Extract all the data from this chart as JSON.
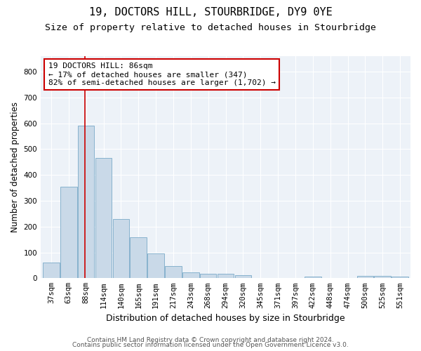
{
  "title1": "19, DOCTORS HILL, STOURBRIDGE, DY9 0YE",
  "title2": "Size of property relative to detached houses in Stourbridge",
  "xlabel": "Distribution of detached houses by size in Stourbridge",
  "ylabel": "Number of detached properties",
  "categories": [
    "37sqm",
    "63sqm",
    "88sqm",
    "114sqm",
    "140sqm",
    "165sqm",
    "191sqm",
    "217sqm",
    "243sqm",
    "268sqm",
    "294sqm",
    "320sqm",
    "345sqm",
    "371sqm",
    "397sqm",
    "422sqm",
    "448sqm",
    "474sqm",
    "500sqm",
    "525sqm",
    "551sqm"
  ],
  "values": [
    60,
    355,
    590,
    465,
    228,
    158,
    95,
    48,
    22,
    18,
    18,
    12,
    0,
    0,
    0,
    5,
    0,
    0,
    8,
    8,
    7
  ],
  "bar_color": "#c9d9e8",
  "bar_edge_color": "#7aaac8",
  "annotation_text": "19 DOCTORS HILL: 86sqm\n← 17% of detached houses are smaller (347)\n82% of semi-detached houses are larger (1,702) →",
  "annotation_box_color": "#ffffff",
  "annotation_box_edge": "#cc0000",
  "vline_color": "#cc0000",
  "ylim": [
    0,
    860
  ],
  "yticks": [
    0,
    100,
    200,
    300,
    400,
    500,
    600,
    700,
    800
  ],
  "background_color": "#edf2f8",
  "footer1": "Contains HM Land Registry data © Crown copyright and database right 2024.",
  "footer2": "Contains public sector information licensed under the Open Government Licence v3.0.",
  "title1_fontsize": 11,
  "title2_fontsize": 9.5,
  "xlabel_fontsize": 9,
  "ylabel_fontsize": 8.5,
  "tick_fontsize": 7.5,
  "annotation_fontsize": 8,
  "footer_fontsize": 6.5
}
